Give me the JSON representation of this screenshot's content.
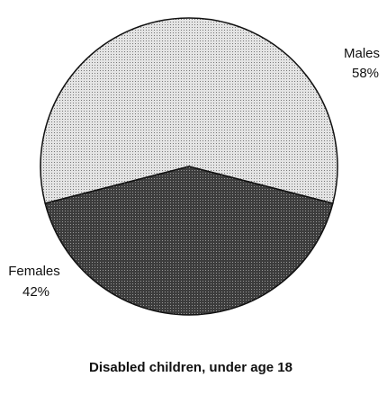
{
  "chart_data": {
    "type": "pie",
    "title": "Disabled children, under age 18",
    "categories": [
      "Males",
      "Females"
    ],
    "values": [
      58,
      42
    ],
    "value_labels": [
      "58%",
      "42%"
    ],
    "colors": [
      "#d4d4d4",
      "#4c4c4c"
    ]
  }
}
